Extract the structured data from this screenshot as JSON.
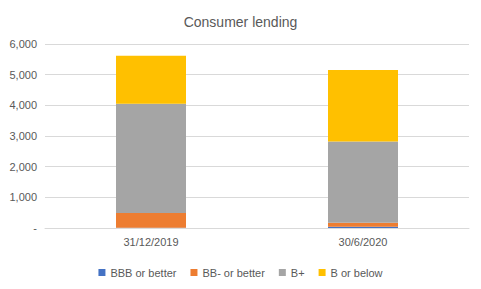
{
  "chart_data": {
    "type": "bar",
    "title": "Consumer lending",
    "categories": [
      "31/12/2019",
      "30/6/2020"
    ],
    "series": [
      {
        "name": "BBB or better",
        "color": "#4472c4",
        "values": [
          10,
          40
        ]
      },
      {
        "name": "BB- or better",
        "color": "#ed7d31",
        "values": [
          480,
          130
        ]
      },
      {
        "name": "B+",
        "color": "#a5a5a5",
        "values": [
          3560,
          2650
        ]
      },
      {
        "name": "B or below",
        "color": "#ffc000",
        "values": [
          1570,
          2330
        ]
      }
    ],
    "ylim": [
      0,
      6000
    ],
    "yticks": [
      {
        "value": 0,
        "label": "-"
      },
      {
        "value": 1000,
        "label": "1,000"
      },
      {
        "value": 2000,
        "label": "2,000"
      },
      {
        "value": 3000,
        "label": "3,000"
      },
      {
        "value": 4000,
        "label": "4,000"
      },
      {
        "value": 5000,
        "label": "5,000"
      },
      {
        "value": 6000,
        "label": "6,000"
      }
    ],
    "stacked": true,
    "grid": true,
    "legend": "bottom"
  }
}
